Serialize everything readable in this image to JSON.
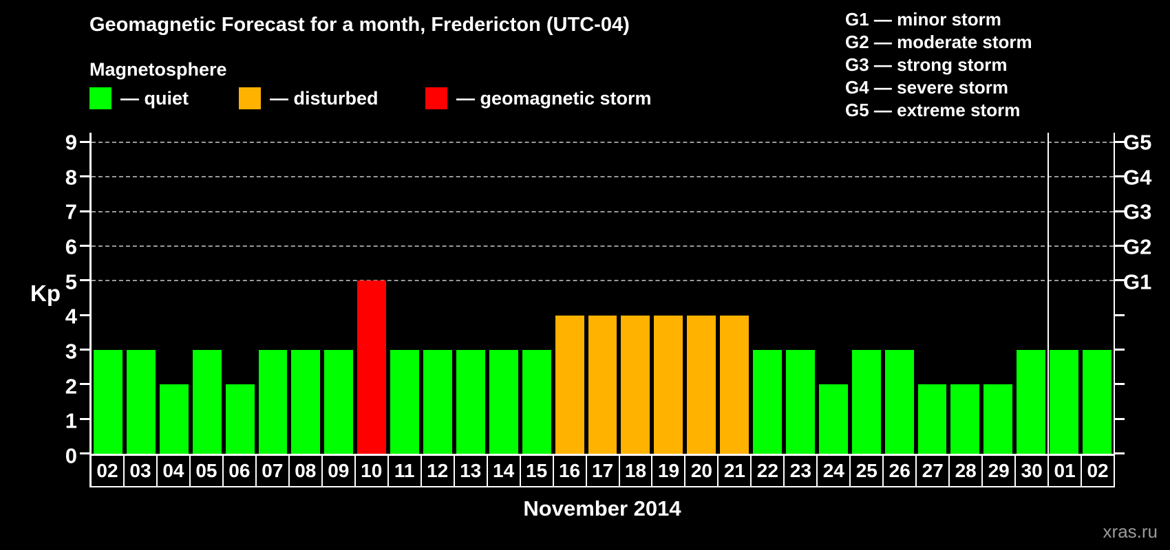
{
  "header": {
    "title": "Geomagnetic Forecast for a month, Fredericton (UTC-04)",
    "subtitle": "Magnetosphere"
  },
  "legend": {
    "items": [
      {
        "label": "— quiet",
        "status": "quiet",
        "color": "#00ff00"
      },
      {
        "label": "— disturbed",
        "status": "disturbed",
        "color": "#ffb200"
      },
      {
        "label": "— geomagnetic storm",
        "status": "storm",
        "color": "#ff0000"
      }
    ]
  },
  "storm_scale": {
    "items": [
      "G1 — minor storm",
      "G2 — moderate storm",
      "G3 — strong storm",
      "G4 — severe storm",
      "G5 — extreme storm"
    ]
  },
  "chart_data": {
    "type": "bar",
    "title": "Geomagnetic Forecast for a month, Fredericton (UTC-04)",
    "xlabel": "November 2014",
    "ylabel": "Kp",
    "ylim": [
      0,
      9
    ],
    "yticks": [
      0,
      1,
      2,
      3,
      4,
      5,
      6,
      7,
      8,
      9
    ],
    "gridlines_kp": [
      5,
      6,
      7,
      8,
      9
    ],
    "right_axis_labels": [
      {
        "label": "G1",
        "kp": 5
      },
      {
        "label": "G2",
        "kp": 6
      },
      {
        "label": "G3",
        "kp": 7
      },
      {
        "label": "G4",
        "kp": 8
      },
      {
        "label": "G5",
        "kp": 9
      }
    ],
    "categories": [
      "02",
      "03",
      "04",
      "05",
      "06",
      "07",
      "08",
      "09",
      "10",
      "11",
      "12",
      "13",
      "14",
      "15",
      "16",
      "17",
      "18",
      "19",
      "20",
      "21",
      "22",
      "23",
      "24",
      "25",
      "26",
      "27",
      "28",
      "29",
      "30",
      "01",
      "02"
    ],
    "values": [
      3,
      3,
      2,
      3,
      2,
      3,
      3,
      3,
      5,
      3,
      3,
      3,
      3,
      3,
      4,
      4,
      4,
      4,
      4,
      4,
      3,
      3,
      2,
      3,
      3,
      2,
      2,
      2,
      3,
      3,
      3
    ],
    "statuses": [
      "quiet",
      "quiet",
      "quiet",
      "quiet",
      "quiet",
      "quiet",
      "quiet",
      "quiet",
      "storm",
      "quiet",
      "quiet",
      "quiet",
      "quiet",
      "quiet",
      "disturbed",
      "disturbed",
      "disturbed",
      "disturbed",
      "disturbed",
      "disturbed",
      "quiet",
      "quiet",
      "quiet",
      "quiet",
      "quiet",
      "quiet",
      "quiet",
      "quiet",
      "quiet",
      "quiet",
      "quiet"
    ],
    "colors": {
      "quiet": "#00ff00",
      "disturbed": "#ffb200",
      "storm": "#ff0000"
    },
    "month_separator_after_index": 28,
    "grid": "dashed-horizontal",
    "legend_position": "top"
  },
  "footer": {
    "watermark": "xras.ru"
  }
}
